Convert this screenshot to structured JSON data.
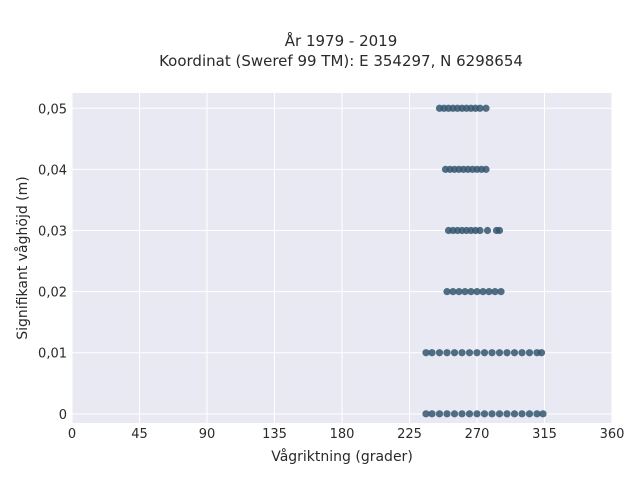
{
  "chart_data": {
    "type": "scatter",
    "title": [
      "År 1979 - 2019",
      "Koordinat (Sweref 99 TM): E 354297, N 6298654"
    ],
    "xlabel": "Vågriktning (grader)",
    "ylabel": "Signifikant våghöjd (m)",
    "xlim": [
      0,
      360
    ],
    "ylim": [
      -0.0015,
      0.0525
    ],
    "xticks": [
      0,
      45,
      90,
      135,
      180,
      225,
      270,
      315,
      360
    ],
    "xtick_labels": [
      "0",
      "45",
      "90",
      "135",
      "180",
      "225",
      "270",
      "315",
      "360"
    ],
    "yticks": [
      0,
      0.01,
      0.02,
      0.03,
      0.04,
      0.05
    ],
    "ytick_labels": [
      "0",
      "0,01",
      "0,02",
      "0,03",
      "0,04",
      "0,05"
    ],
    "grid": true,
    "marker_color": "#34566e",
    "plot_background": "#e9e9f3",
    "series": [
      {
        "points": [
          {
            "x": 236,
            "y": 0
          },
          {
            "x": 240,
            "y": 0
          },
          {
            "x": 245,
            "y": 0
          },
          {
            "x": 250,
            "y": 0
          },
          {
            "x": 255,
            "y": 0
          },
          {
            "x": 260,
            "y": 0
          },
          {
            "x": 265,
            "y": 0
          },
          {
            "x": 270,
            "y": 0
          },
          {
            "x": 275,
            "y": 0
          },
          {
            "x": 280,
            "y": 0
          },
          {
            "x": 285,
            "y": 0
          },
          {
            "x": 290,
            "y": 0
          },
          {
            "x": 295,
            "y": 0
          },
          {
            "x": 300,
            "y": 0
          },
          {
            "x": 305,
            "y": 0
          },
          {
            "x": 310,
            "y": 0
          },
          {
            "x": 314,
            "y": 0
          },
          {
            "x": 236,
            "y": 0.01
          },
          {
            "x": 240,
            "y": 0.01
          },
          {
            "x": 245,
            "y": 0.01
          },
          {
            "x": 250,
            "y": 0.01
          },
          {
            "x": 255,
            "y": 0.01
          },
          {
            "x": 260,
            "y": 0.01
          },
          {
            "x": 265,
            "y": 0.01
          },
          {
            "x": 270,
            "y": 0.01
          },
          {
            "x": 275,
            "y": 0.01
          },
          {
            "x": 280,
            "y": 0.01
          },
          {
            "x": 285,
            "y": 0.01
          },
          {
            "x": 290,
            "y": 0.01
          },
          {
            "x": 295,
            "y": 0.01
          },
          {
            "x": 300,
            "y": 0.01
          },
          {
            "x": 305,
            "y": 0.01
          },
          {
            "x": 310,
            "y": 0.01
          },
          {
            "x": 313,
            "y": 0.01
          },
          {
            "x": 250,
            "y": 0.02
          },
          {
            "x": 254,
            "y": 0.02
          },
          {
            "x": 258,
            "y": 0.02
          },
          {
            "x": 262,
            "y": 0.02
          },
          {
            "x": 266,
            "y": 0.02
          },
          {
            "x": 270,
            "y": 0.02
          },
          {
            "x": 274,
            "y": 0.02
          },
          {
            "x": 278,
            "y": 0.02
          },
          {
            "x": 282,
            "y": 0.02
          },
          {
            "x": 286,
            "y": 0.02
          },
          {
            "x": 251,
            "y": 0.03
          },
          {
            "x": 254,
            "y": 0.03
          },
          {
            "x": 257,
            "y": 0.03
          },
          {
            "x": 260,
            "y": 0.03
          },
          {
            "x": 263,
            "y": 0.03
          },
          {
            "x": 266,
            "y": 0.03
          },
          {
            "x": 269,
            "y": 0.03
          },
          {
            "x": 272,
            "y": 0.03
          },
          {
            "x": 277,
            "y": 0.03
          },
          {
            "x": 283,
            "y": 0.03
          },
          {
            "x": 285,
            "y": 0.03
          },
          {
            "x": 249,
            "y": 0.04
          },
          {
            "x": 252,
            "y": 0.04
          },
          {
            "x": 255,
            "y": 0.04
          },
          {
            "x": 258,
            "y": 0.04
          },
          {
            "x": 261,
            "y": 0.04
          },
          {
            "x": 264,
            "y": 0.04
          },
          {
            "x": 267,
            "y": 0.04
          },
          {
            "x": 270,
            "y": 0.04
          },
          {
            "x": 273,
            "y": 0.04
          },
          {
            "x": 276,
            "y": 0.04
          },
          {
            "x": 245,
            "y": 0.05
          },
          {
            "x": 248,
            "y": 0.05
          },
          {
            "x": 251,
            "y": 0.05
          },
          {
            "x": 254,
            "y": 0.05
          },
          {
            "x": 257,
            "y": 0.05
          },
          {
            "x": 260,
            "y": 0.05
          },
          {
            "x": 263,
            "y": 0.05
          },
          {
            "x": 266,
            "y": 0.05
          },
          {
            "x": 269,
            "y": 0.05
          },
          {
            "x": 272,
            "y": 0.05
          },
          {
            "x": 276,
            "y": 0.05
          }
        ]
      }
    ]
  }
}
